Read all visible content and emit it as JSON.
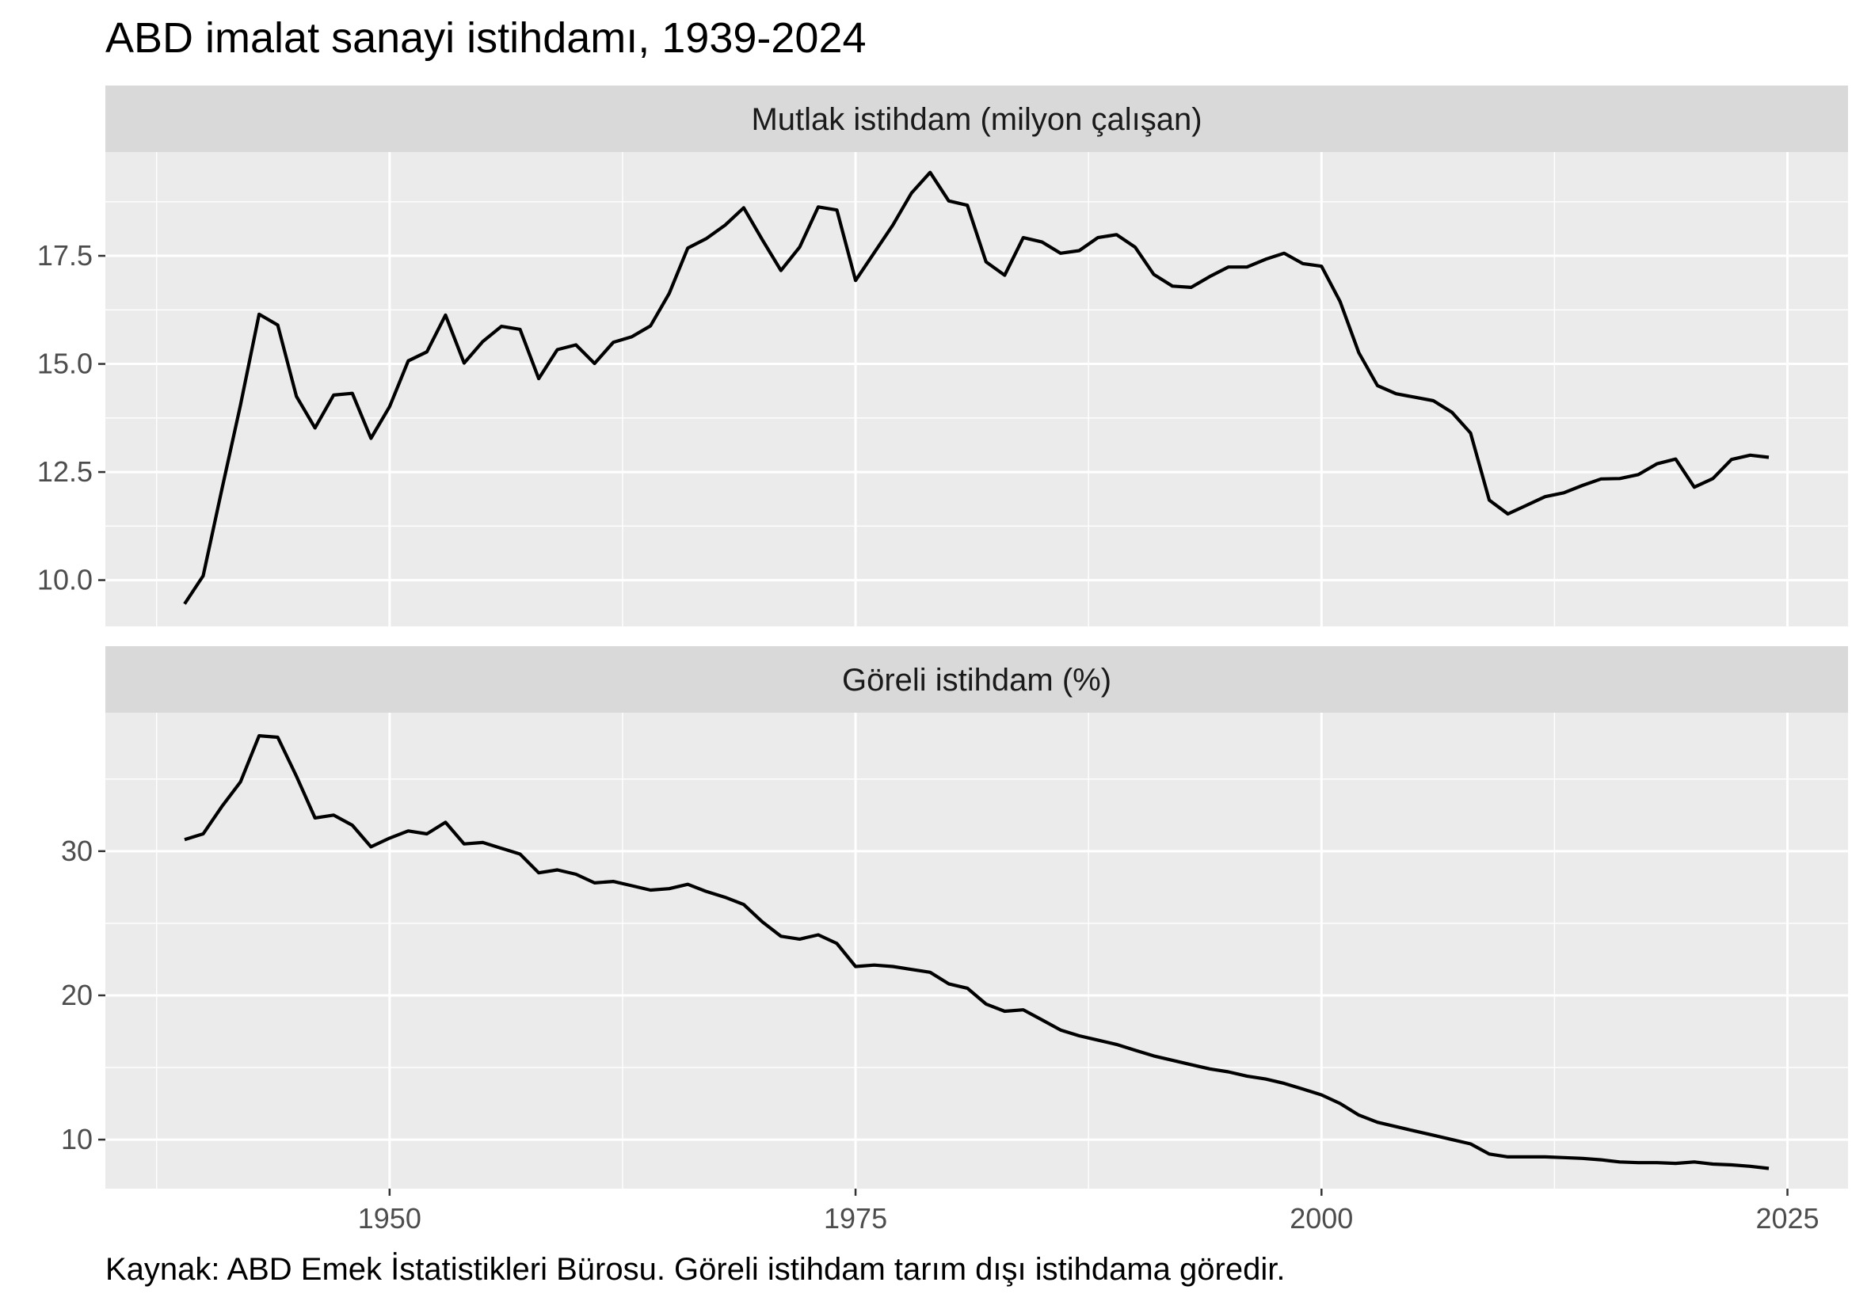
{
  "title": "ABD imalat sanayi istihdamı, 1939-2024",
  "caption": "Kaynak: ABD Emek İstatistikleri Bürosu. Göreli istihdam tarım dışı istihdama göredir.",
  "colors": {
    "panel_background": "#ebebeb",
    "strip_background": "#d9d9d9",
    "gridline": "#ffffff",
    "line": "#000000"
  },
  "chart_data": [
    {
      "type": "line",
      "panel_title": "Mutlak istihdam (milyon çalışan)",
      "x_tick_labels": [
        "1950",
        "1975",
        "2000",
        "2025"
      ],
      "x_ticks": [
        1950,
        1975,
        2000,
        2025
      ],
      "y_ticks": [
        10.0,
        12.5,
        15.0,
        17.5
      ],
      "y_tick_labels": [
        "10.0",
        "12.5",
        "15.0",
        "17.5"
      ],
      "xlim": [
        1934.75,
        2028.25
      ],
      "ylim": [
        8.93,
        19.9
      ],
      "grid": true,
      "x": [
        1939,
        1940,
        1941,
        1942,
        1943,
        1944,
        1945,
        1946,
        1947,
        1948,
        1949,
        1950,
        1951,
        1952,
        1953,
        1954,
        1955,
        1956,
        1957,
        1958,
        1959,
        1960,
        1961,
        1962,
        1963,
        1964,
        1965,
        1966,
        1967,
        1968,
        1969,
        1970,
        1971,
        1972,
        1973,
        1974,
        1975,
        1976,
        1977,
        1978,
        1979,
        1980,
        1981,
        1982,
        1983,
        1984,
        1985,
        1986,
        1987,
        1988,
        1989,
        1990,
        1991,
        1992,
        1993,
        1994,
        1995,
        1996,
        1997,
        1998,
        1999,
        2000,
        2001,
        2002,
        2003,
        2004,
        2005,
        2006,
        2007,
        2008,
        2009,
        2010,
        2011,
        2012,
        2013,
        2014,
        2015,
        2016,
        2017,
        2018,
        2019,
        2020,
        2021,
        2022,
        2023,
        2024
      ],
      "values": [
        9.45,
        10.1,
        12.1,
        14.05,
        16.15,
        15.9,
        14.25,
        13.52,
        14.28,
        14.32,
        13.28,
        14.01,
        15.07,
        15.28,
        16.13,
        15.02,
        15.52,
        15.87,
        15.8,
        14.66,
        15.33,
        15.44,
        15.01,
        15.5,
        15.63,
        15.88,
        16.63,
        17.68,
        17.9,
        18.21,
        18.61,
        17.87,
        17.16,
        17.7,
        18.63,
        18.56,
        16.93,
        17.57,
        18.21,
        18.95,
        19.43,
        18.77,
        18.67,
        17.36,
        17.05,
        17.92,
        17.82,
        17.56,
        17.62,
        17.92,
        17.99,
        17.7,
        17.07,
        16.8,
        16.77,
        17.02,
        17.24,
        17.24,
        17.42,
        17.56,
        17.32,
        17.26,
        16.44,
        15.26,
        14.5,
        14.31,
        14.23,
        14.15,
        13.88,
        13.4,
        11.85,
        11.53,
        11.73,
        11.93,
        12.02,
        12.19,
        12.34,
        12.35,
        12.44,
        12.69,
        12.8,
        12.15,
        12.35,
        12.79,
        12.89,
        12.84
      ]
    },
    {
      "type": "line",
      "panel_title": "Göreli istihdam (%)",
      "x_tick_labels": [
        "1950",
        "1975",
        "2000",
        "2025"
      ],
      "x_ticks": [
        1950,
        1975,
        2000,
        2025
      ],
      "y_ticks": [
        10,
        20,
        30
      ],
      "y_tick_labels": [
        "10",
        "20",
        "30"
      ],
      "xlim": [
        1934.75,
        2028.25
      ],
      "ylim": [
        6.6,
        39.6
      ],
      "grid": true,
      "x": [
        1939,
        1940,
        1941,
        1942,
        1943,
        1944,
        1945,
        1946,
        1947,
        1948,
        1949,
        1950,
        1951,
        1952,
        1953,
        1954,
        1955,
        1956,
        1957,
        1958,
        1959,
        1960,
        1961,
        1962,
        1963,
        1964,
        1965,
        1966,
        1967,
        1968,
        1969,
        1970,
        1971,
        1972,
        1973,
        1974,
        1975,
        1976,
        1977,
        1978,
        1979,
        1980,
        1981,
        1982,
        1983,
        1984,
        1985,
        1986,
        1987,
        1988,
        1989,
        1990,
        1991,
        1992,
        1993,
        1994,
        1995,
        1996,
        1997,
        1998,
        1999,
        2000,
        2001,
        2002,
        2003,
        2004,
        2005,
        2006,
        2007,
        2008,
        2009,
        2010,
        2011,
        2012,
        2013,
        2014,
        2015,
        2016,
        2017,
        2018,
        2019,
        2020,
        2021,
        2022,
        2023,
        2024
      ],
      "values": [
        30.8,
        31.2,
        33.1,
        34.8,
        38.0,
        37.9,
        35.2,
        32.3,
        32.5,
        31.8,
        30.3,
        30.9,
        31.4,
        31.2,
        32.0,
        30.5,
        30.6,
        30.2,
        29.8,
        28.5,
        28.7,
        28.4,
        27.8,
        27.9,
        27.6,
        27.3,
        27.4,
        27.7,
        27.2,
        26.8,
        26.3,
        25.1,
        24.1,
        23.9,
        24.2,
        23.6,
        22.0,
        22.1,
        22.0,
        21.8,
        21.6,
        20.8,
        20.5,
        19.4,
        18.9,
        19.0,
        18.3,
        17.6,
        17.2,
        16.9,
        16.6,
        16.2,
        15.8,
        15.5,
        15.2,
        14.9,
        14.7,
        14.4,
        14.2,
        13.9,
        13.5,
        13.1,
        12.5,
        11.7,
        11.2,
        10.9,
        10.6,
        10.3,
        10.0,
        9.7,
        9.0,
        8.8,
        8.8,
        8.8,
        8.75,
        8.7,
        8.6,
        8.45,
        8.4,
        8.4,
        8.35,
        8.45,
        8.3,
        8.25,
        8.15,
        8.0
      ]
    }
  ]
}
